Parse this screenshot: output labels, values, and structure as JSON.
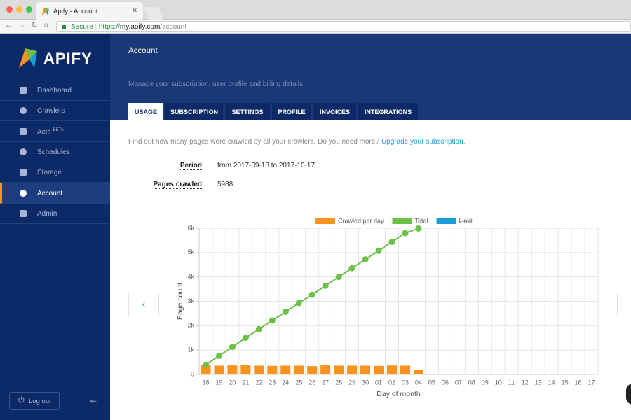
{
  "browser": {
    "tab_title": "Apify - Account",
    "secure": "Secure",
    "url": {
      "scheme": "https://",
      "host": "my.apify.com",
      "path": "/account"
    }
  },
  "sidebar": {
    "logo": "APIFY",
    "nav": [
      {
        "label": "Dashboard"
      },
      {
        "label": "Crawlers"
      },
      {
        "label": "Acts",
        "badge": "BETA"
      },
      {
        "label": "Schedules"
      },
      {
        "label": "Storage"
      },
      {
        "label": "Account",
        "active": true
      },
      {
        "label": "Admin"
      }
    ],
    "logout": "Log out"
  },
  "header": {
    "title": "Account",
    "subtitle": "Manage your subscription, user profile and billing details."
  },
  "tabs": [
    {
      "label": "USAGE",
      "active": true
    },
    {
      "label": "SUBSCRIPTION"
    },
    {
      "label": "SETTINGS"
    },
    {
      "label": "PROFILE"
    },
    {
      "label": "INVOICES"
    },
    {
      "label": "INTEGRATIONS"
    }
  ],
  "usage": {
    "intro": "Find out how many pages were crawled by all your crawlers. Do you need more?",
    "link": "Upgrade your subscription",
    "intro_end": ".",
    "fields": [
      {
        "label": "Period",
        "value": "from 2017-09-18 to 2017-10-17"
      },
      {
        "label": "Pages crawled",
        "value": "5988"
      }
    ]
  },
  "chart_data": {
    "type": "bar",
    "categories": [
      "18",
      "19",
      "20",
      "21",
      "22",
      "23",
      "24",
      "25",
      "26",
      "27",
      "28",
      "29",
      "30",
      "01",
      "02",
      "03",
      "04",
      "05",
      "06",
      "07",
      "08",
      "09",
      "10",
      "11",
      "12",
      "13",
      "14",
      "15",
      "16",
      "17"
    ],
    "series": [
      {
        "name": "Crawled per day",
        "type": "bar",
        "color": "#f7931e",
        "values": [
          400,
          360,
          370,
          370,
          360,
          350,
          360,
          360,
          340,
          370,
          360,
          360,
          360,
          350,
          370,
          360,
          188,
          null,
          null,
          null,
          null,
          null,
          null,
          null,
          null,
          null,
          null,
          null,
          null,
          null
        ]
      },
      {
        "name": "Total",
        "type": "line",
        "color": "#6cc04a",
        "values": [
          400,
          760,
          1130,
          1500,
          1860,
          2210,
          2570,
          2930,
          3270,
          3640,
          4000,
          4360,
          4720,
          5070,
          5440,
          5800,
          5988,
          null,
          null,
          null,
          null,
          null,
          null,
          null,
          null,
          null,
          null,
          null,
          null,
          null
        ]
      },
      {
        "name": "Limit",
        "type": "line",
        "color": "#1a9ed9",
        "hidden": true,
        "values": [
          null,
          null,
          null,
          null,
          null,
          null,
          null,
          null,
          null,
          null,
          null,
          null,
          null,
          null,
          null,
          null,
          null,
          null,
          null,
          null,
          null,
          null,
          null,
          null,
          null,
          null,
          null,
          null,
          null,
          null
        ]
      }
    ],
    "ylim": [
      0,
      6000
    ],
    "yticks": [
      0,
      {
        "value": 1000,
        "label": "1k"
      },
      {
        "value": 2000,
        "label": "2k"
      },
      {
        "value": 3000,
        "label": "3k"
      },
      {
        "value": 4000,
        "label": "4k"
      },
      {
        "value": 5000,
        "label": "5k"
      },
      {
        "value": 6000,
        "label": "6k"
      }
    ],
    "ylabel": "Page count",
    "xlabel": "Day of month",
    "grid": true,
    "legend": "top"
  }
}
